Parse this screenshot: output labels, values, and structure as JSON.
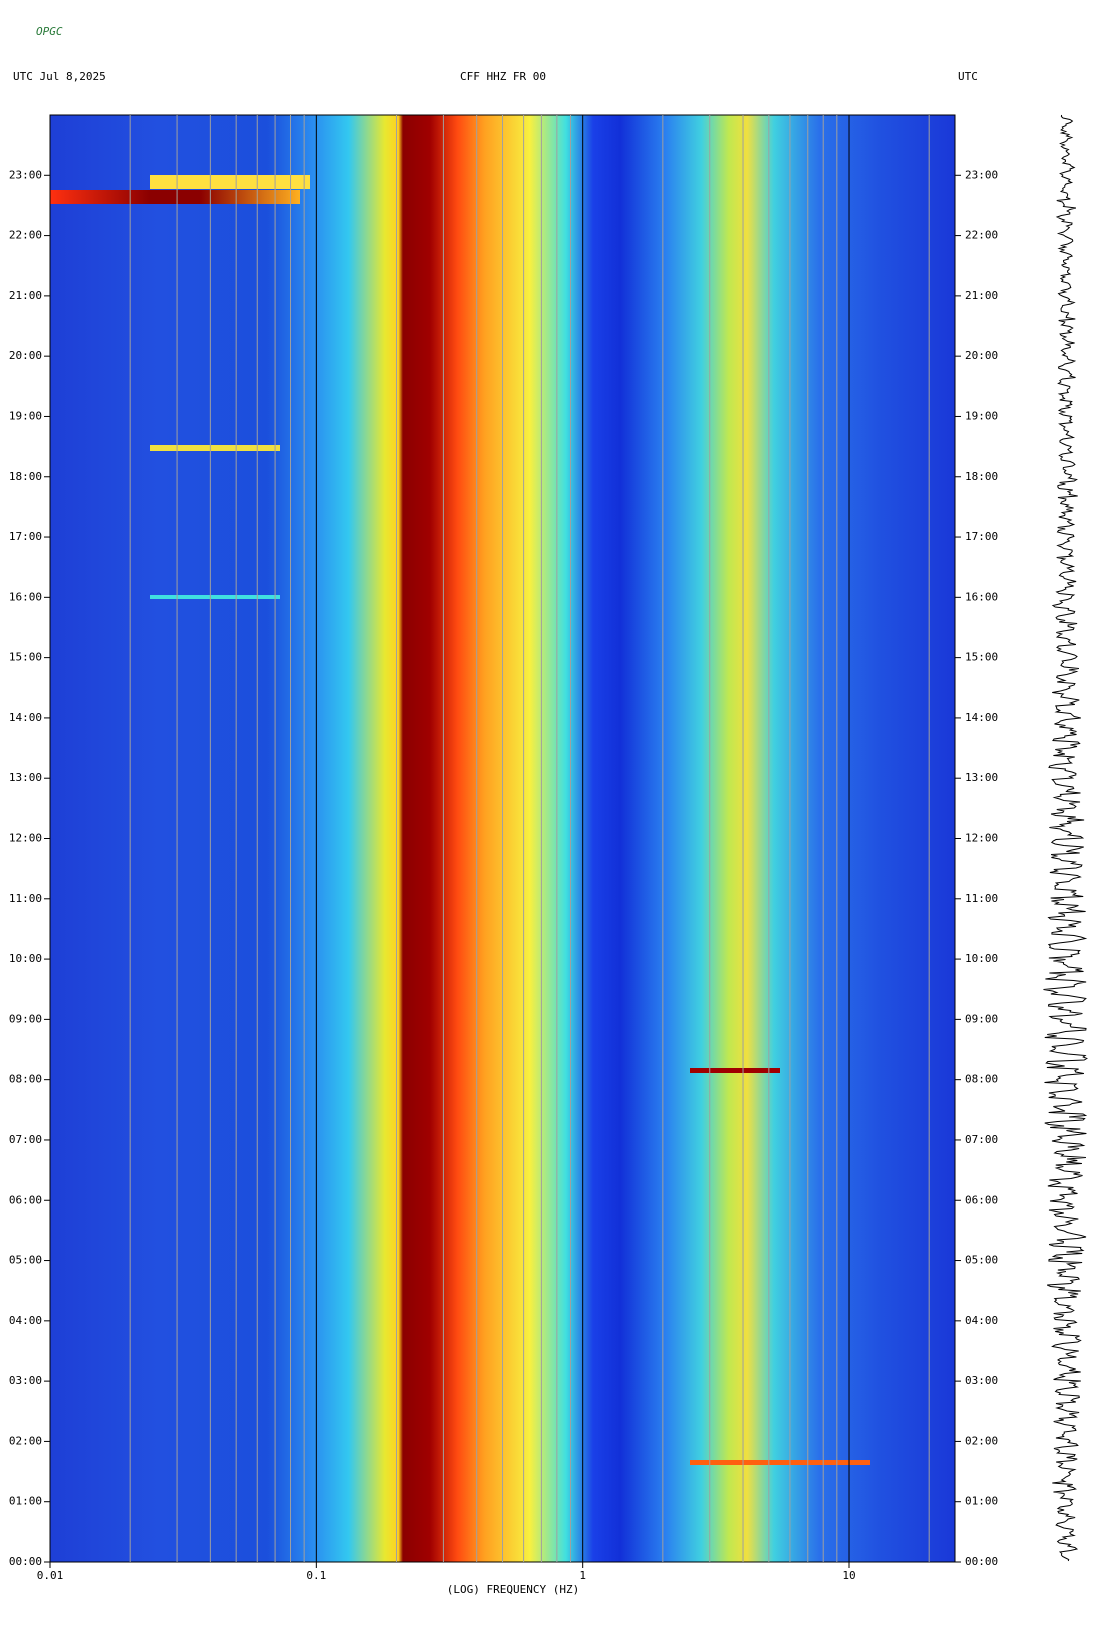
{
  "header": {
    "logo": "OPGC"
  },
  "chart_data": {
    "type": "spectrogram",
    "title": "CFF HHZ FR 00",
    "subtitle": "UTC  Jul 8,2025",
    "right_label": "UTC",
    "x_label": "(LOG) FREQUENCY (HZ)",
    "log_x": true,
    "xlim": [
      0.01,
      25
    ],
    "xticks": [
      0.01,
      0.1,
      1,
      10
    ],
    "xminorticks": [
      0.02,
      0.03,
      0.04,
      0.05,
      0.06,
      0.07,
      0.08,
      0.09,
      0.2,
      0.3,
      0.4,
      0.5,
      0.6,
      0.7,
      0.8,
      0.9,
      2,
      3,
      4,
      5,
      6,
      7,
      8,
      9,
      20
    ],
    "ylim": [
      0,
      24
    ],
    "yticks": [
      {
        "value": 0,
        "label": "00:00"
      },
      {
        "value": 1,
        "label": "01:00"
      },
      {
        "value": 2,
        "label": "02:00"
      },
      {
        "value": 3,
        "label": "03:00"
      },
      {
        "value": 4,
        "label": "04:00"
      },
      {
        "value": 5,
        "label": "05:00"
      },
      {
        "value": 6,
        "label": "06:00"
      },
      {
        "value": 7,
        "label": "07:00"
      },
      {
        "value": 8,
        "label": "08:00"
      },
      {
        "value": 9,
        "label": "09:00"
      },
      {
        "value": 10,
        "label": "10:00"
      },
      {
        "value": 11,
        "label": "11:00"
      },
      {
        "value": 12,
        "label": "12:00"
      },
      {
        "value": 13,
        "label": "13:00"
      },
      {
        "value": 14,
        "label": "14:00"
      },
      {
        "value": 15,
        "label": "15:00"
      },
      {
        "value": 16,
        "label": "16:00"
      },
      {
        "value": 17,
        "label": "17:00"
      },
      {
        "value": 18,
        "label": "18:00"
      },
      {
        "value": 19,
        "label": "19:00"
      },
      {
        "value": 20,
        "label": "20:00"
      },
      {
        "value": 21,
        "label": "21:00"
      },
      {
        "value": 22,
        "label": "22:00"
      },
      {
        "value": 23,
        "label": "23:00"
      }
    ]
  }
}
